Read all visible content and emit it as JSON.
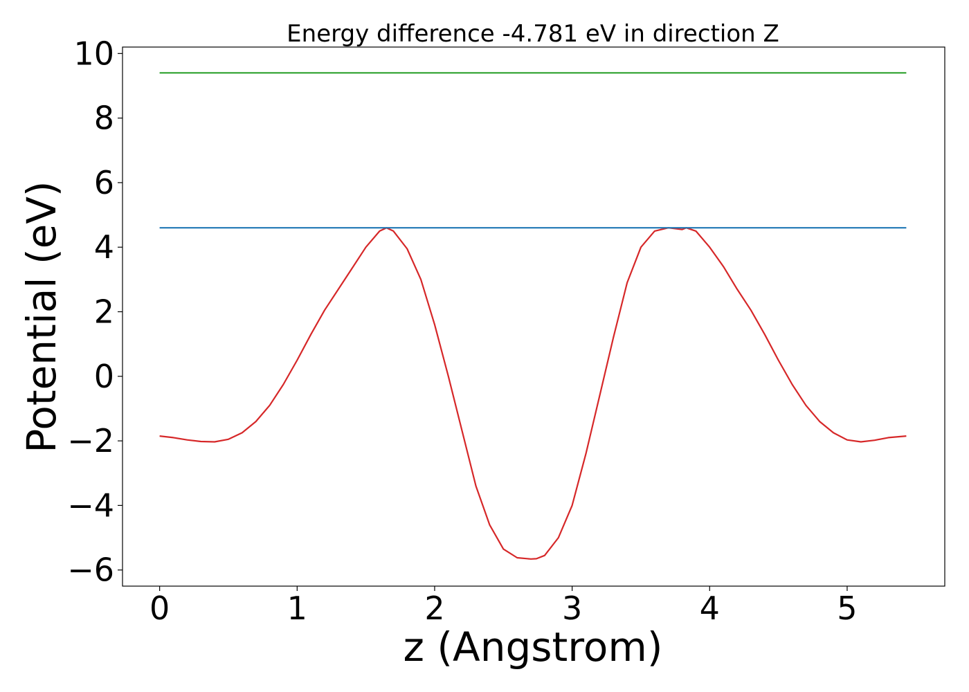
{
  "chart_data": {
    "type": "line",
    "title": "Energy difference -4.781 eV in direction Z",
    "xlabel": "z (Angstrom)",
    "ylabel": "Potential (eV)",
    "xlim": [
      -0.27,
      5.71
    ],
    "ylim": [
      -6.5,
      10.2
    ],
    "xticks": [
      0,
      1,
      2,
      3,
      4,
      5
    ],
    "xtick_labels": [
      "0",
      "1",
      "2",
      "3",
      "4",
      "5"
    ],
    "yticks": [
      -6,
      -4,
      -2,
      0,
      2,
      4,
      6,
      8,
      10
    ],
    "ytick_labels": [
      "−6",
      "−4",
      "−2",
      "0",
      "2",
      "4",
      "6",
      "8",
      "10"
    ],
    "grid": false,
    "series": [
      {
        "color": "#d62728",
        "x": [
          0.0,
          0.1,
          0.2,
          0.3,
          0.4,
          0.5,
          0.6,
          0.7,
          0.8,
          0.9,
          1.0,
          1.1,
          1.2,
          1.3,
          1.4,
          1.5,
          1.6,
          1.65,
          1.7,
          1.8,
          1.9,
          2.0,
          2.1,
          2.2,
          2.3,
          2.4,
          2.5,
          2.6,
          2.7,
          2.74,
          2.8,
          2.9,
          3.0,
          3.1,
          3.2,
          3.3,
          3.4,
          3.5,
          3.6,
          3.7,
          3.8,
          3.83,
          3.9,
          4.0,
          4.1,
          4.2,
          4.3,
          4.4,
          4.5,
          4.6,
          4.7,
          4.8,
          4.9,
          5.0,
          5.1,
          5.2,
          5.3,
          5.43
        ],
        "y": [
          -1.85,
          -1.9,
          -1.97,
          -2.02,
          -2.03,
          -1.95,
          -1.75,
          -1.4,
          -0.9,
          -0.25,
          0.5,
          1.3,
          2.05,
          2.7,
          3.35,
          4.0,
          4.5,
          4.6,
          4.5,
          3.95,
          3.0,
          1.6,
          0.0,
          -1.7,
          -3.4,
          -4.6,
          -5.35,
          -5.62,
          -5.66,
          -5.65,
          -5.55,
          -5.0,
          -4.0,
          -2.4,
          -0.6,
          1.2,
          2.9,
          4.0,
          4.5,
          4.6,
          4.55,
          4.6,
          4.5,
          4.0,
          3.4,
          2.7,
          2.05,
          1.3,
          0.5,
          -0.25,
          -0.9,
          -1.4,
          -1.75,
          -1.97,
          -2.03,
          -1.98,
          -1.9,
          -1.85
        ]
      },
      {
        "color": "#1f77b4",
        "x": [
          0.0,
          5.43
        ],
        "y": [
          4.6,
          4.6
        ]
      },
      {
        "color": "#2ca02c",
        "x": [
          0.0,
          5.43
        ],
        "y": [
          9.4,
          9.4
        ]
      }
    ]
  }
}
